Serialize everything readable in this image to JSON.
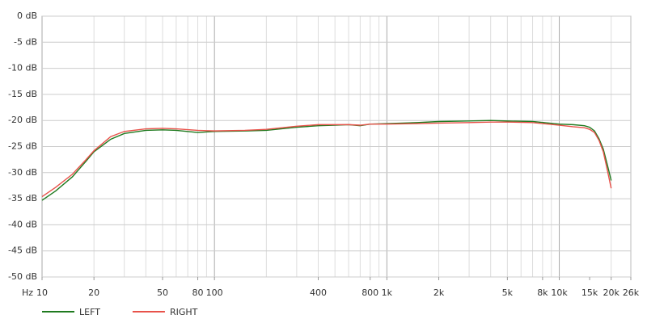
{
  "chart_data": {
    "type": "line",
    "x_label": "Hz",
    "log_x": true,
    "grid": true,
    "minor_grid": true,
    "legend_position": "bottom-left",
    "xlim": [
      10,
      26000
    ],
    "ylim": [
      -50,
      0
    ],
    "xticks": [
      10,
      20,
      50,
      80,
      100,
      400,
      800,
      {
        "value": 1000,
        "label": "1k"
      },
      {
        "value": 2000,
        "label": "2k"
      },
      {
        "value": 5000,
        "label": "5k"
      },
      {
        "value": 8000,
        "label": "8k"
      },
      {
        "value": 10000,
        "label": "10k"
      },
      {
        "value": 15000,
        "label": "15k"
      },
      {
        "value": 20000,
        "label": "20k"
      },
      {
        "value": 26000,
        "label": "26k"
      }
    ],
    "yticks": [
      {
        "value": 0,
        "label": "0 dB"
      },
      {
        "value": -5,
        "label": "-5 dB"
      },
      {
        "value": -10,
        "label": "-10 dB"
      },
      {
        "value": -15,
        "label": "-15 dB"
      },
      {
        "value": -20,
        "label": "-20 dB"
      },
      {
        "value": -25,
        "label": "-25 dB"
      },
      {
        "value": -30,
        "label": "-30 dB"
      },
      {
        "value": -35,
        "label": "-35 dB"
      },
      {
        "value": -40,
        "label": "-40 dB"
      },
      {
        "value": -45,
        "label": "-45 dB"
      },
      {
        "value": -50,
        "label": "-50 dB"
      }
    ],
    "x": [
      10,
      12,
      15,
      18,
      20,
      25,
      30,
      40,
      50,
      60,
      80,
      100,
      150,
      200,
      300,
      400,
      500,
      600,
      700,
      800,
      1000,
      1500,
      2000,
      3000,
      4000,
      5000,
      7000,
      10000,
      12000,
      14000,
      15000,
      16000,
      17000,
      18000,
      19000,
      20000
    ],
    "series": [
      {
        "name": "LEFT",
        "color": "#1f7a1f",
        "values": [
          -35.3,
          -33.5,
          -30.8,
          -27.8,
          -26,
          -23.6,
          -22.5,
          -21.9,
          -21.8,
          -21.9,
          -22.3,
          -22.1,
          -22,
          -21.9,
          -21.3,
          -21,
          -20.9,
          -20.8,
          -21,
          -20.7,
          -20.6,
          -20.4,
          -20.2,
          -20.1,
          -20,
          -20.1,
          -20.2,
          -20.7,
          -20.8,
          -21,
          -21.3,
          -22,
          -23.5,
          -25.5,
          -28.5,
          -31.5
        ]
      },
      {
        "name": "RIGHT",
        "color": "#e8524a",
        "values": [
          -34.6,
          -32.8,
          -30.3,
          -27.5,
          -25.8,
          -23.1,
          -22.1,
          -21.6,
          -21.5,
          -21.6,
          -21.9,
          -22,
          -21.9,
          -21.7,
          -21.1,
          -20.8,
          -20.8,
          -20.8,
          -20.9,
          -20.7,
          -20.7,
          -20.6,
          -20.5,
          -20.4,
          -20.3,
          -20.3,
          -20.4,
          -20.9,
          -21.2,
          -21.4,
          -21.7,
          -22.3,
          -23.8,
          -26,
          -29.5,
          -33
        ]
      }
    ]
  }
}
